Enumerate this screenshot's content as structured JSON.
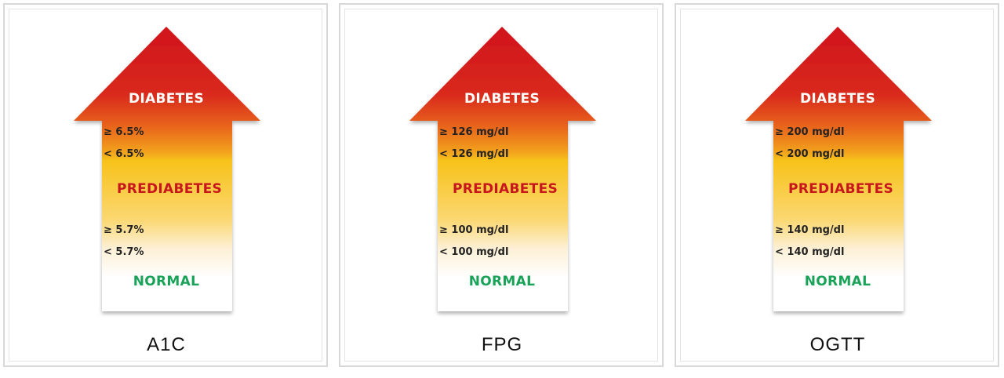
{
  "colors": {
    "diabetes_text": "#ffffff",
    "prediabetes_text": "#c8161d",
    "normal_text": "#1aa358",
    "arrow_top": "#d0131f",
    "arrow_mid": "#f7c21a",
    "arrow_bottom": "#ffffff"
  },
  "panels": [
    {
      "test": "A1C",
      "diabetes": "DIABETES",
      "diabetes_threshold": "≥ 6.5%",
      "prediabetes_upper": "< 6.5%",
      "prediabetes": "PREDIABETES",
      "prediabetes_lower": "≥ 5.7%",
      "normal_threshold": "< 5.7%",
      "normal": "NORMAL"
    },
    {
      "test": "FPG",
      "diabetes": "DIABETES",
      "diabetes_threshold": "≥ 126 mg/dl",
      "prediabetes_upper": "< 126 mg/dl",
      "prediabetes": "PREDIABETES",
      "prediabetes_lower": "≥ 100 mg/dl",
      "normal_threshold": "< 100 mg/dl",
      "normal": "NORMAL"
    },
    {
      "test": "OGTT",
      "diabetes": "DIABETES",
      "diabetes_threshold": "≥ 200 mg/dl",
      "prediabetes_upper": "< 200 mg/dl",
      "prediabetes": "PREDIABETES",
      "prediabetes_lower": "≥ 140 mg/dl",
      "normal_threshold": "< 140 mg/dl",
      "normal": "NORMAL"
    }
  ]
}
